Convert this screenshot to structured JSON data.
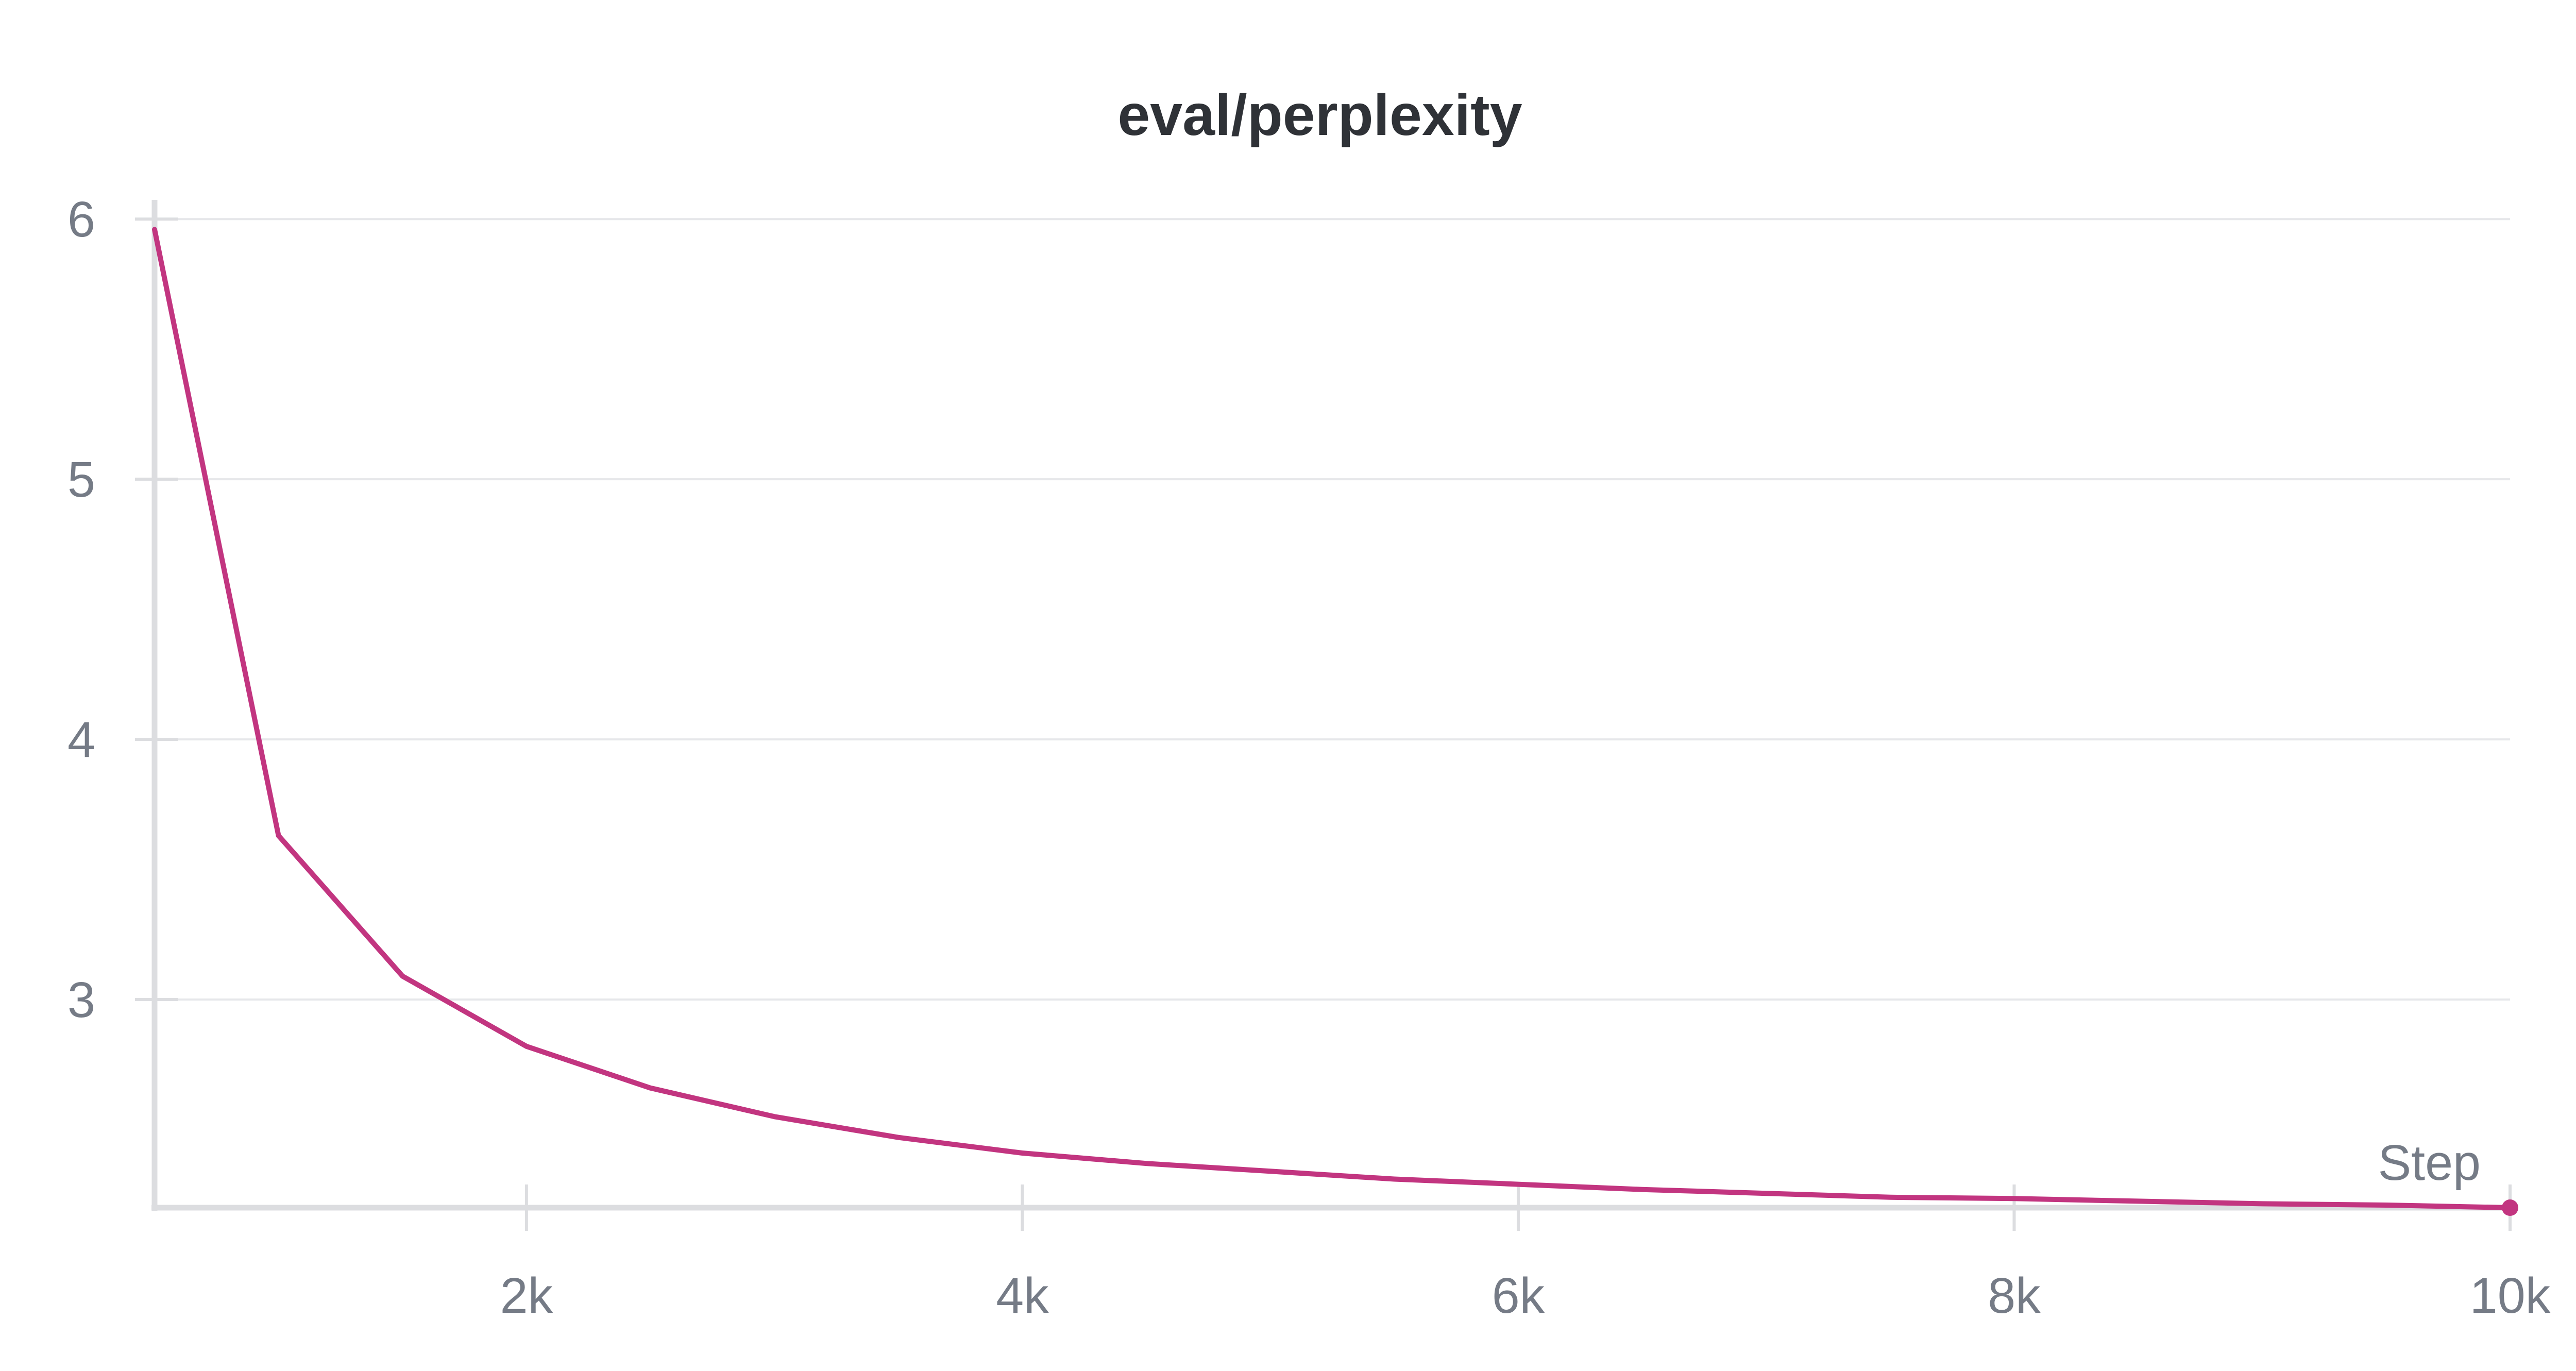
{
  "chart_data": {
    "type": "line",
    "title": "eval/perplexity",
    "xlabel": "Step",
    "ylabel": "",
    "xlim": [
      500,
      10000
    ],
    "ylim": [
      2.2,
      6.05
    ],
    "x_ticks": [
      2000,
      4000,
      6000,
      8000,
      10000
    ],
    "x_tick_labels": [
      "2k",
      "4k",
      "6k",
      "8k",
      "10k"
    ],
    "y_ticks": [
      3,
      4,
      5,
      6
    ],
    "y_tick_labels": [
      "3",
      "4",
      "5",
      "6"
    ],
    "grid": "horizontal",
    "legend": "none",
    "series": [
      {
        "color": "#c23580",
        "x": [
          500,
          1000,
          1500,
          2000,
          2500,
          3000,
          3500,
          4000,
          4500,
          5000,
          5500,
          6000,
          6500,
          7000,
          7500,
          8000,
          8500,
          9000,
          9500,
          10000
        ],
        "values": [
          5.96,
          3.63,
          3.09,
          2.82,
          2.66,
          2.55,
          2.47,
          2.41,
          2.37,
          2.34,
          2.31,
          2.29,
          2.27,
          2.255,
          2.24,
          2.235,
          2.225,
          2.215,
          2.21,
          2.2
        ]
      }
    ]
  }
}
